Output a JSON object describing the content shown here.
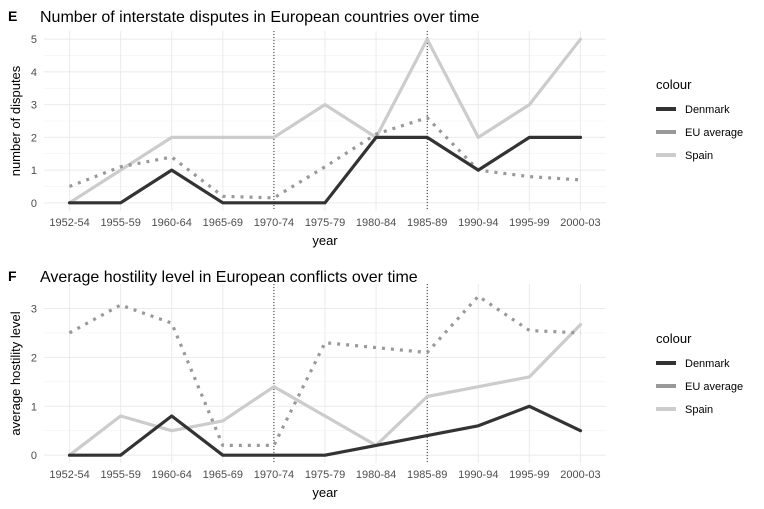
{
  "chart_data": [
    {
      "type": "line",
      "panel_label": "E",
      "title": "Number of interstate disputes in European countries over time",
      "xlabel": "year",
      "ylabel": "number of disputes",
      "categories": [
        "1952-54",
        "1955-59",
        "1960-64",
        "1965-69",
        "1970-74",
        "1975-79",
        "1980-84",
        "1985-89",
        "1990-94",
        "1995-99",
        "2000-03"
      ],
      "yticks": [
        0,
        1,
        2,
        3,
        4,
        5
      ],
      "ylim": [
        -0.25,
        5.25
      ],
      "grid": true,
      "vlines": [
        "1970-74",
        "1985-89"
      ],
      "legend": {
        "title": "colour",
        "placement": "right"
      },
      "series": [
        {
          "name": "Denmark",
          "color": "#333333",
          "style": "solid",
          "values": [
            0,
            0,
            1,
            0,
            0,
            0,
            2,
            2,
            1,
            2,
            2
          ]
        },
        {
          "name": "EU average",
          "color": "#999999",
          "style": "dotted",
          "values": [
            0.5,
            1.1,
            1.4,
            0.2,
            0.15,
            1.1,
            2.1,
            2.6,
            1.0,
            0.8,
            0.7
          ]
        },
        {
          "name": "Spain",
          "color": "#cccccc",
          "style": "solid",
          "values": [
            0,
            1,
            2,
            2,
            2,
            3,
            2,
            5,
            2,
            3,
            5
          ]
        }
      ]
    },
    {
      "type": "line",
      "panel_label": "F",
      "title": "Average hostility level in European conflicts over time",
      "xlabel": "year",
      "ylabel": "average hostility level",
      "categories": [
        "1952-54",
        "1955-59",
        "1960-64",
        "1965-69",
        "1970-74",
        "1975-79",
        "1980-84",
        "1985-89",
        "1990-94",
        "1995-99",
        "2000-03"
      ],
      "yticks": [
        0,
        1,
        2,
        3
      ],
      "ylim": [
        -0.16,
        3.5
      ],
      "grid": true,
      "vlines": [
        "1970-74",
        "1985-89"
      ],
      "legend": {
        "title": "colour",
        "placement": "right"
      },
      "series": [
        {
          "name": "Denmark",
          "color": "#333333",
          "style": "solid",
          "values": [
            0,
            0,
            0.8,
            0,
            0,
            0,
            0.2,
            0.4,
            0.6,
            1.0,
            0.5
          ]
        },
        {
          "name": "EU average",
          "color": "#999999",
          "style": "dotted",
          "values": [
            2.5,
            3.07,
            2.7,
            0.2,
            0.2,
            2.3,
            2.2,
            2.1,
            3.25,
            2.55,
            2.5
          ]
        },
        {
          "name": "Spain",
          "color": "#cccccc",
          "style": "solid",
          "values": [
            0,
            0.8,
            0.5,
            0.7,
            1.4,
            0.8,
            0.2,
            1.2,
            1.4,
            1.6,
            2.67
          ]
        }
      ]
    }
  ]
}
